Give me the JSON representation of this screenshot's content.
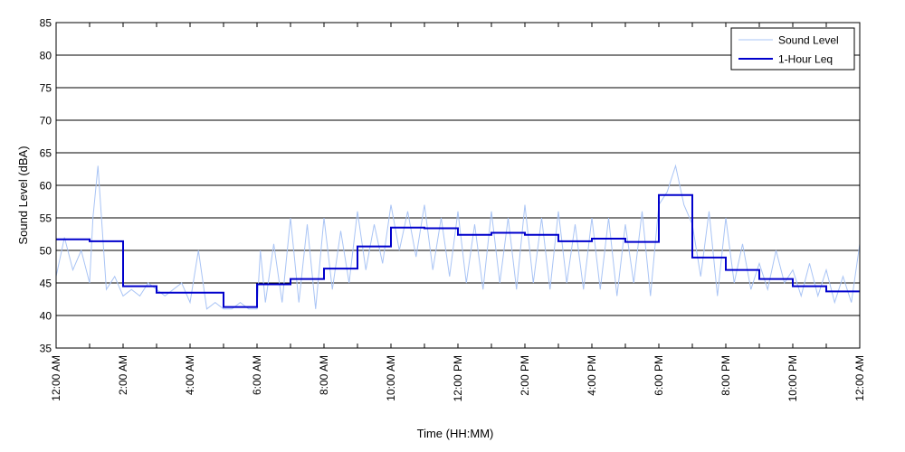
{
  "chart_data": {
    "type": "line",
    "title": "",
    "xlabel": "Time (HH:MM)",
    "ylabel": "Sound Level (dBA)",
    "xlim": [
      0,
      24
    ],
    "ylim": [
      35,
      85
    ],
    "y_ticks": [
      35,
      40,
      45,
      50,
      55,
      60,
      65,
      70,
      75,
      80,
      85
    ],
    "x_ticks": [
      0,
      1,
      2,
      3,
      4,
      5,
      6,
      7,
      8,
      9,
      10,
      11,
      12,
      13,
      14,
      15,
      16,
      17,
      18,
      19,
      20,
      21,
      22,
      23,
      24
    ],
    "x_tick_labels": [
      {
        "x": 0,
        "label": "12:00 AM"
      },
      {
        "x": 2,
        "label": "2:00 AM"
      },
      {
        "x": 4,
        "label": "4:00 AM"
      },
      {
        "x": 6,
        "label": "6:00 AM"
      },
      {
        "x": 8,
        "label": "8:00 AM"
      },
      {
        "x": 10,
        "label": "10:00 AM"
      },
      {
        "x": 12,
        "label": "12:00 PM"
      },
      {
        "x": 14,
        "label": "2:00 PM"
      },
      {
        "x": 16,
        "label": "4:00 PM"
      },
      {
        "x": 18,
        "label": "6:00 PM"
      },
      {
        "x": 20,
        "label": "8:00 PM"
      },
      {
        "x": 22,
        "label": "10:00 PM"
      },
      {
        "x": 24,
        "label": "12:00 AM"
      }
    ],
    "grid": "horizontal",
    "legend_position": "top-right",
    "series": [
      {
        "name": "Sound Level",
        "color": "#a9c4f5",
        "style": "thin",
        "x": [
          0,
          0.25,
          0.5,
          0.75,
          1,
          1.1,
          1.25,
          1.5,
          1.75,
          2,
          2.25,
          2.5,
          2.75,
          3,
          3.25,
          3.5,
          3.75,
          4,
          4.25,
          4.5,
          4.75,
          5,
          5.25,
          5.5,
          5.75,
          6,
          6.1,
          6.25,
          6.5,
          6.75,
          7,
          7.25,
          7.5,
          7.75,
          8,
          8.25,
          8.5,
          8.75,
          9,
          9.25,
          9.5,
          9.75,
          10,
          10.25,
          10.5,
          10.75,
          11,
          11.25,
          11.5,
          11.75,
          12,
          12.25,
          12.5,
          12.75,
          13,
          13.25,
          13.5,
          13.75,
          14,
          14.25,
          14.5,
          14.75,
          15,
          15.25,
          15.5,
          15.75,
          16,
          16.25,
          16.5,
          16.75,
          17,
          17.25,
          17.5,
          17.75,
          18,
          18.25,
          18.5,
          18.75,
          19,
          19.25,
          19.5,
          19.75,
          20,
          20.25,
          20.5,
          20.75,
          21,
          21.25,
          21.5,
          21.75,
          22,
          22.25,
          22.5,
          22.75,
          23,
          23.25,
          23.5,
          23.75,
          24
        ],
        "y": [
          46,
          52,
          47,
          50,
          45,
          55,
          63,
          44,
          46,
          43,
          44,
          43,
          45,
          44,
          43,
          44,
          45,
          42,
          50,
          41,
          42,
          41,
          41,
          42,
          41,
          41,
          50,
          42,
          51,
          42,
          55,
          42,
          54,
          41,
          55,
          44,
          53,
          45,
          56,
          47,
          54,
          48,
          57,
          50,
          56,
          49,
          57,
          47,
          55,
          46,
          56,
          45,
          54,
          44,
          56,
          45,
          55,
          44,
          57,
          45,
          55,
          44,
          56,
          45,
          54,
          44,
          55,
          44,
          55,
          43,
          54,
          45,
          56,
          43,
          57,
          59,
          63,
          57,
          54,
          46,
          56,
          43,
          55,
          45,
          51,
          44,
          48,
          44,
          50,
          45,
          47,
          43,
          48,
          43,
          47,
          42,
          46,
          42,
          51
        ]
      },
      {
        "name": "1-Hour Leq",
        "color": "#0000cc",
        "style": "step",
        "x": [
          0,
          1,
          2,
          3,
          4,
          5,
          6,
          7,
          8,
          9,
          10,
          11,
          12,
          13,
          14,
          15,
          16,
          17,
          18,
          19,
          20,
          21,
          22,
          23
        ],
        "y": [
          51.7,
          51.4,
          44.5,
          43.5,
          43.5,
          41.3,
          44.8,
          45.6,
          47.2,
          50.6,
          53.5,
          53.4,
          52.4,
          52.7,
          52.4,
          51.4,
          51.8,
          51.3,
          58.5,
          48.9,
          47.0,
          45.6,
          44.5,
          43.7
        ]
      }
    ]
  }
}
